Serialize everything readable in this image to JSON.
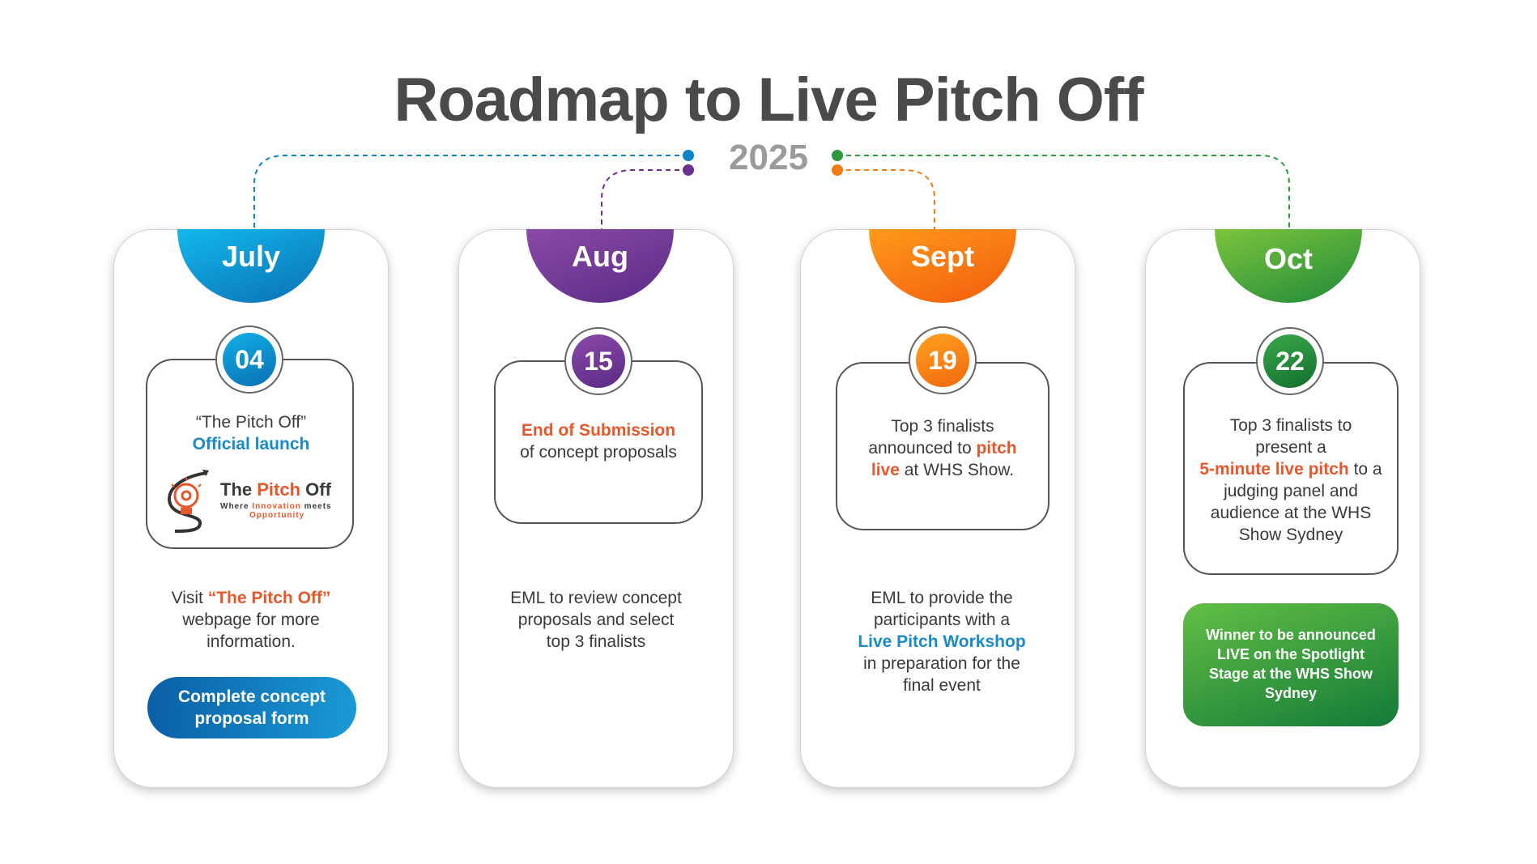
{
  "title": "Roadmap to Live Pitch Off",
  "year": "2025",
  "colors": {
    "july": "#0a86c8",
    "aug": "#6b2f8f",
    "sept": "#f57a12",
    "oct": "#2a9a3c"
  },
  "columns": [
    {
      "month": "July",
      "day": "04",
      "box": {
        "line1": "“The Pitch Off”",
        "line2": "Official launch"
      },
      "logo": {
        "name_a": "The ",
        "name_b": "Pitch",
        "name_c": " Off",
        "tag_a": "Where ",
        "tag_b": "Innovation",
        "tag_c": " meets",
        "tag_d": "Opportunity"
      },
      "body": {
        "a": "Visit ",
        "b": "“The Pitch Off”",
        "c": "webpage for more",
        "d": "information."
      },
      "button": {
        "line1": "Complete concept",
        "line2": "proposal form"
      }
    },
    {
      "month": "Aug",
      "day": "15",
      "box": {
        "line1": "End of Submission",
        "line2": "of concept proposals"
      },
      "body": {
        "a": "EML to review concept",
        "b": "proposals and select",
        "c": "top 3 finalists"
      }
    },
    {
      "month": "Sept",
      "day": "19",
      "box": {
        "line1": "Top 3 finalists",
        "line2a": "announced to ",
        "line2b": "pitch",
        "line3a": "live",
        "line3b": " at WHS Show."
      },
      "body": {
        "a": "EML to provide the",
        "b": "participants with a",
        "c": "Live Pitch Workshop",
        "d": "in preparation for the",
        "e": "final event"
      }
    },
    {
      "month": "Oct",
      "day": "22",
      "box": {
        "line1": "Top 3 finalists to",
        "line2": "present a",
        "line3a": "5-minute live pitch",
        "line3b": " to a",
        "line4": "judging panel and",
        "line5": "audience at the WHS",
        "line6": "Show Sydney"
      },
      "winner": {
        "line1": "Winner to be announced",
        "line2": "LIVE on the Spotlight",
        "line3": "Stage at the WHS Show",
        "line4": "Sydney"
      }
    }
  ]
}
